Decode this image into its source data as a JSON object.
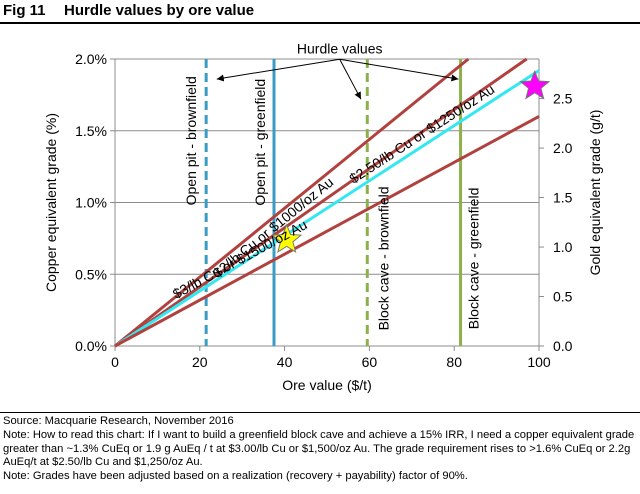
{
  "figure": {
    "label": "Fig 11",
    "title": "Hurdle values by ore value"
  },
  "footer": {
    "source": "Source: Macquarie Research, November 2016",
    "note1": "Note: How to read this chart: If I want to build a greenfield block cave and achieve a 15% IRR, I need a copper equivalent grade greater than ~1.3% CuEq or 1.9 g AuEq / t at $3.00/lb Cu or $1,500/oz Au. The grade requirement rises to >1.6% CuEq or 2.2g AuEq/t at $2.50/lb Cu and $1,250/oz Au.",
    "note2": "Note: Grades have been adjusted based on a realization (recovery + payability) factor of 90%."
  },
  "chart_data": {
    "type": "line",
    "xlabel": "Ore value ($/t)",
    "ylabel": "Copper equivalent grade (%)",
    "y2label": "Gold equivalent grade (g/t)",
    "xlim": [
      0,
      100
    ],
    "ylim": [
      0,
      2.0
    ],
    "y2lim": [
      0,
      2.9
    ],
    "x_ticks": [
      0,
      20,
      40,
      60,
      80,
      100
    ],
    "x_tick_labels": [
      "0",
      "20",
      "40",
      "60",
      "80",
      "100"
    ],
    "y_ticks": [
      0,
      0.5,
      1.0,
      1.5,
      2.0
    ],
    "y_tick_labels": [
      "0.0%",
      "0.5%",
      "1.0%",
      "1.5%",
      "2.0%"
    ],
    "y2_ticks": [
      0,
      0.5,
      1.0,
      1.5,
      2.0,
      2.5
    ],
    "y2_tick_labels": [
      "0.0",
      "0.5",
      "1.0",
      "1.5",
      "2.0",
      "2.5"
    ],
    "grid": "horizontal",
    "colors": {
      "price_lines": "#b0413e",
      "highlight_line": "#33e8f0",
      "open_pit": "#3a9cc4",
      "block_cave": "#8db04b",
      "star_yellow": "#ffff00",
      "star_magenta": "#ff00ff"
    },
    "series": [
      {
        "label": "$2/lb Cu or $1000/oz Au",
        "x": [
          0,
          100
        ],
        "y": [
          0,
          2.4
        ],
        "style": "solid"
      },
      {
        "label": "",
        "x": [
          0,
          100
        ],
        "y": [
          0,
          2.06
        ],
        "style": "solid"
      },
      {
        "label": "$2.50/lb Cu or $1250/oz Au",
        "x": [
          0,
          100
        ],
        "y": [
          0,
          1.92
        ],
        "style": "solid-highlight"
      },
      {
        "label": "$3/lb Cu or $1500/oz Au",
        "x": [
          0,
          100
        ],
        "y": [
          0,
          1.6
        ],
        "style": "solid"
      }
    ],
    "hurdles": [
      {
        "label": "Open pit - brownfield",
        "x": 21.5,
        "style": "dashed",
        "group": "open_pit"
      },
      {
        "label": "Open pit - greenfield",
        "x": 37.5,
        "style": "solid",
        "group": "open_pit"
      },
      {
        "label": "Block cave - brownfield",
        "x": 59.5,
        "style": "dashed",
        "group": "block_cave"
      },
      {
        "label": "Block cave - greenfield",
        "x": 81.5,
        "style": "solid",
        "group": "block_cave"
      }
    ],
    "stars": [
      {
        "x": 40.5,
        "y": 0.74,
        "color": "yellow"
      },
      {
        "x": 99,
        "y": 1.81,
        "color": "magenta"
      }
    ],
    "annotation": {
      "text": "Hurdle values",
      "text_x": 53,
      "text_y": 2.04,
      "arrow_targets": [
        [
          24,
          1.86
        ],
        [
          58,
          1.72
        ],
        [
          81,
          1.86
        ]
      ]
    }
  }
}
